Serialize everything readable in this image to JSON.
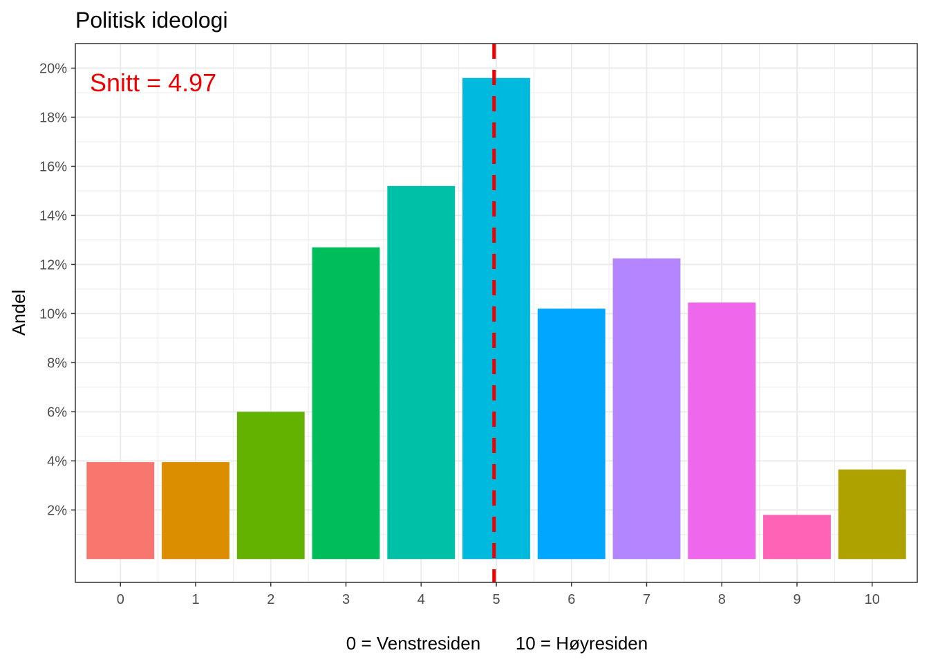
{
  "chart_data": {
    "type": "bar",
    "title": "Politisk ideologi",
    "xlabel": "0 = Venstresiden       10 = Høyresiden",
    "ylabel": "Andel",
    "categories": [
      "0",
      "1",
      "2",
      "3",
      "4",
      "5",
      "6",
      "7",
      "8",
      "9",
      "10"
    ],
    "values": [
      3.95,
      3.95,
      6.0,
      12.7,
      15.2,
      19.6,
      10.2,
      12.25,
      10.45,
      1.8,
      3.65
    ],
    "value_unit": "%",
    "bar_colors": [
      "#F8766D",
      "#DB8E00",
      "#64B200",
      "#00BD5C",
      "#00C1A7",
      "#00BADE",
      "#00A6FF",
      "#B385FF",
      "#EF67EB",
      "#FF63B6",
      "#AEA200"
    ],
    "yticks": [
      2,
      4,
      6,
      8,
      10,
      12,
      14,
      16,
      18,
      20
    ],
    "ytick_labels": [
      "2%",
      "4%",
      "6%",
      "8%",
      "10%",
      "12%",
      "14%",
      "16%",
      "18%",
      "20%"
    ],
    "ylim": [
      -0.95,
      21.0
    ],
    "xlim": [
      -0.6,
      10.6
    ],
    "grid": true,
    "mean_line": {
      "x": 4.97,
      "color": "#EE0000",
      "style": "dashed"
    },
    "annotation": {
      "text": "Snitt = 4.97",
      "color": "#EE0000"
    }
  }
}
